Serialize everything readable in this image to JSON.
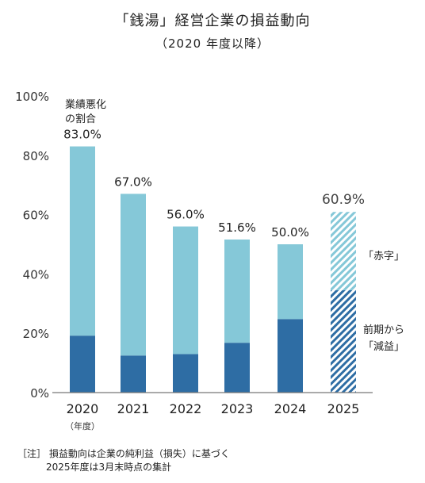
{
  "title": "「銭湯」経営企業の損益動向",
  "subtitle": "（2020 年度以降）",
  "chart_data": {
    "type": "bar",
    "categories": [
      "2020",
      "2021",
      "2022",
      "2023",
      "2024",
      "2025"
    ],
    "x_sublabel": "（年度）",
    "ylim": [
      0,
      100
    ],
    "y_ticks": [
      "0%",
      "20%",
      "40%",
      "60%",
      "80%",
      "100%"
    ],
    "series": [
      {
        "name": "前期から「減益」",
        "values": [
          19.2,
          12.5,
          13.0,
          16.8,
          24.8,
          34.5
        ]
      },
      {
        "name": "「赤字」",
        "values": [
          63.8,
          54.5,
          43.0,
          34.8,
          25.2,
          26.4
        ]
      }
    ],
    "totals": [
      "83.0%",
      "67.0%",
      "56.0%",
      "51.6%",
      "50.0%",
      "60.9%"
    ],
    "first_bar_annotation": [
      "業績悪化",
      "の割合"
    ],
    "projected_category": "2025",
    "legend": {
      "top_label": "「赤字」",
      "bottom_label_line1": "前期から",
      "bottom_label_line2": "「減益」"
    },
    "colors": {
      "gensui": "#2e6da4",
      "akaji": "#85c8d8",
      "projected_dark": "#2e6da4",
      "projected_light": "#85c8d8",
      "axis": "#777777"
    }
  },
  "note_line1": "［注］ 損益動向は企業の純利益（損失）に基づく",
  "note_line2": "2025年度は3月末時点の集計"
}
